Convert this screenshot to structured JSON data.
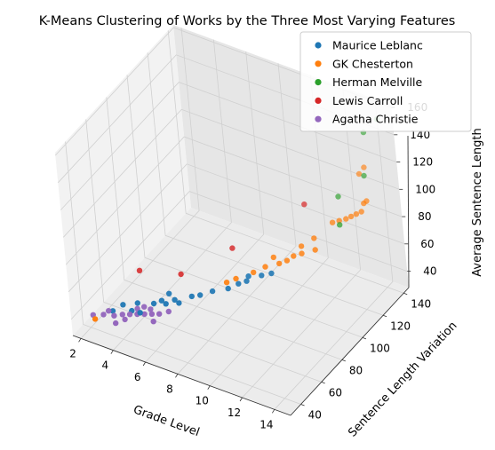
{
  "chart_data": {
    "type": "scatter",
    "projection": "3d",
    "title": "K-Means Clustering of Works by the Three Most Varying Features",
    "xlabel": "Grade Level",
    "ylabel": "Sentence Length Variation",
    "zlabel": "Average Sentence Length",
    "xlim": [
      1.5,
      15
    ],
    "ylim": [
      30,
      145
    ],
    "zlim": [
      28,
      162
    ],
    "xticks": [
      2,
      4,
      6,
      8,
      10,
      12,
      14
    ],
    "yticks": [
      40,
      60,
      80,
      100,
      120,
      140
    ],
    "zticks": [
      40,
      60,
      80,
      100,
      120,
      140,
      160
    ],
    "legend": {
      "placement": "top-right",
      "entries": [
        "Maurice Leblanc",
        "GK Chesterton",
        "Herman Melville",
        "Lewis Carroll",
        "Agatha Christie"
      ]
    },
    "colors": {
      "Maurice Leblanc": "#1f77b4",
      "GK Chesterton": "#ff7f0e",
      "Herman Melville": "#2ca02c",
      "Lewis Carroll": "#d62728",
      "Agatha Christie": "#9467bd"
    },
    "series": [
      {
        "name": "Maurice Leblanc",
        "points": [
          [
            3.2,
            44,
            42
          ],
          [
            3.6,
            48,
            45
          ],
          [
            4.4,
            50,
            48
          ],
          [
            4.8,
            46,
            46
          ],
          [
            5.3,
            52,
            50
          ],
          [
            5.6,
            55,
            51
          ],
          [
            6.0,
            53,
            52
          ],
          [
            6.3,
            57,
            53
          ],
          [
            6.7,
            55,
            54
          ],
          [
            7.2,
            60,
            57
          ],
          [
            7.6,
            62,
            58
          ],
          [
            8.2,
            65,
            61
          ],
          [
            9.0,
            68,
            64
          ],
          [
            9.4,
            72,
            66
          ],
          [
            9.8,
            74,
            68
          ],
          [
            9.8,
            76,
            70
          ],
          [
            10.5,
            78,
            72
          ],
          [
            11.0,
            80,
            74
          ],
          [
            4.2,
            47,
            44
          ],
          [
            5.9,
            58,
            55
          ]
        ]
      },
      {
        "name": "GK Chesterton",
        "points": [
          [
            2.6,
            36,
            40
          ],
          [
            8.8,
            70,
            66
          ],
          [
            9.2,
            73,
            68
          ],
          [
            10.0,
            78,
            72
          ],
          [
            10.5,
            82,
            75
          ],
          [
            11.2,
            85,
            78
          ],
          [
            11.8,
            90,
            82
          ],
          [
            12.0,
            95,
            86
          ],
          [
            12.5,
            100,
            90
          ],
          [
            13.2,
            108,
            98
          ],
          [
            13.5,
            110,
            99
          ],
          [
            13.8,
            112,
            100
          ],
          [
            14.0,
            114,
            101
          ],
          [
            14.2,
            116,
            102
          ],
          [
            14.4,
            118,
            103
          ],
          [
            14.5,
            122,
            108
          ],
          [
            13.9,
            126,
            122
          ],
          [
            14.1,
            128,
            126
          ],
          [
            14.6,
            118,
            110
          ],
          [
            12.8,
            96,
            86
          ],
          [
            11.5,
            88,
            79
          ],
          [
            10.8,
            86,
            80
          ],
          [
            12.2,
            92,
            84
          ]
        ]
      },
      {
        "name": "Herman Melville",
        "points": [
          [
            13.5,
            110,
            96
          ],
          [
            14.0,
            132,
            148
          ],
          [
            14.5,
            138,
            155
          ],
          [
            13.0,
            118,
            108
          ],
          [
            14.2,
            126,
            122
          ]
        ]
      },
      {
        "name": "Lewis Carroll",
        "points": [
          [
            4.0,
            60,
            62
          ],
          [
            6.2,
            66,
            64
          ],
          [
            8.5,
            82,
            80
          ],
          [
            11.5,
            108,
            104
          ]
        ]
      },
      {
        "name": "Agatha Christie",
        "points": [
          [
            2.2,
            40,
            38
          ],
          [
            2.8,
            41,
            40
          ],
          [
            3.4,
            42,
            41
          ],
          [
            3.8,
            44,
            42
          ],
          [
            4.2,
            45,
            43
          ],
          [
            4.6,
            46,
            44
          ],
          [
            5.0,
            47,
            45
          ],
          [
            5.4,
            48,
            46
          ],
          [
            5.8,
            49,
            47
          ],
          [
            3.0,
            43,
            42
          ],
          [
            4.5,
            48,
            46
          ],
          [
            5.2,
            50,
            47
          ],
          [
            3.6,
            40,
            38
          ],
          [
            4.0,
            43,
            40
          ],
          [
            6.2,
            52,
            48
          ],
          [
            4.8,
            50,
            47
          ],
          [
            5.6,
            46,
            43
          ]
        ]
      }
    ]
  }
}
